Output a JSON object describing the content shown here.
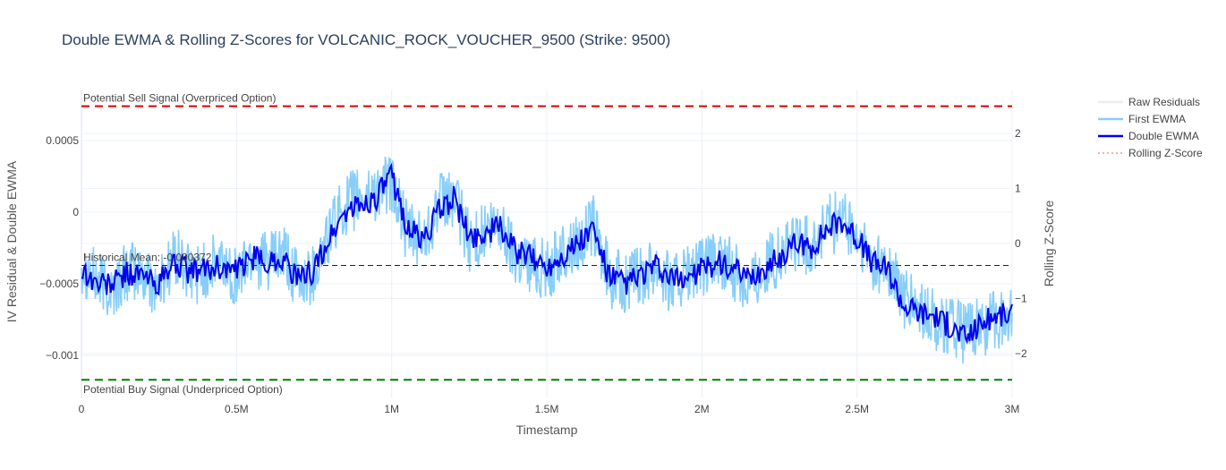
{
  "chart_data": {
    "type": "line",
    "title": "Double EWMA & Rolling Z-Scores for VOLCANIC_ROCK_VOUCHER_9500 (Strike: 9500)",
    "xlabel": "Timestamp",
    "ylabel": "IV Residual & Double EWMA",
    "y2label": "Rolling Z-Score",
    "xlim": [
      0,
      3000000
    ],
    "ylim": [
      -0.00117,
      0.00075
    ],
    "y2lim": [
      -2.6,
      2.6
    ],
    "x_ticks": [
      {
        "value": 0,
        "label": "0"
      },
      {
        "value": 500000,
        "label": "0.5M"
      },
      {
        "value": 1000000,
        "label": "1M"
      },
      {
        "value": 1500000,
        "label": "1.5M"
      },
      {
        "value": 2000000,
        "label": "2M"
      },
      {
        "value": 2500000,
        "label": "2.5M"
      },
      {
        "value": 3000000,
        "label": "3M"
      }
    ],
    "y_ticks": [
      {
        "value": 0.0005,
        "label": "0.0005"
      },
      {
        "value": 0,
        "label": "0"
      },
      {
        "value": -0.0005,
        "label": "−0.0005"
      },
      {
        "value": -0.001,
        "label": "−0.001"
      }
    ],
    "y2_ticks": [
      {
        "value": 2,
        "label": "2"
      },
      {
        "value": 1,
        "label": "1"
      },
      {
        "value": 0,
        "label": "0"
      },
      {
        "value": -1,
        "label": "−1"
      },
      {
        "value": -2,
        "label": "−2"
      }
    ],
    "grid": true,
    "legend_position": "top-right",
    "series": [
      {
        "name": "Raw Residuals",
        "color": "#e0e4ea",
        "dash": "solid",
        "hidden": true,
        "values": []
      },
      {
        "name": "First EWMA",
        "color": "#87cefa",
        "dash": "solid",
        "x": [
          0,
          50000,
          100000,
          150000,
          200000,
          250000,
          300000,
          350000,
          400000,
          450000,
          500000,
          550000,
          600000,
          650000,
          700000,
          750000,
          800000,
          850000,
          900000,
          950000,
          1000000,
          1050000,
          1100000,
          1150000,
          1200000,
          1250000,
          1300000,
          1350000,
          1400000,
          1450000,
          1500000,
          1550000,
          1600000,
          1650000,
          1700000,
          1750000,
          1800000,
          1850000,
          1900000,
          1950000,
          2000000,
          2050000,
          2100000,
          2150000,
          2200000,
          2250000,
          2300000,
          2350000,
          2400000,
          2450000,
          2500000,
          2550000,
          2600000,
          2650000,
          2700000,
          2750000,
          2800000,
          2850000,
          2900000,
          2950000,
          3000000
        ],
        "values": [
          -0.00035,
          -0.00048,
          -0.00055,
          -0.0004,
          -0.00045,
          -0.00052,
          -0.0003,
          -0.00045,
          -0.0004,
          -0.00035,
          -0.00045,
          -0.0003,
          -0.00035,
          -0.0003,
          -0.0005,
          -0.00042,
          -0.00015,
          5e-05,
          0.0001,
          0.00015,
          0.0002,
          -0.00015,
          -0.0002,
          5e-05,
          0.0001,
          -0.0002,
          -0.00015,
          -0.0001,
          -0.0003,
          -0.00035,
          -0.0004,
          -0.0003,
          -0.0002,
          -0.0001,
          -0.00045,
          -0.0005,
          -0.00045,
          -0.00035,
          -0.0005,
          -0.00045,
          -0.0004,
          -0.00035,
          -0.0004,
          -0.0005,
          -0.0004,
          -0.0003,
          -0.0002,
          -0.00025,
          -0.0001,
          -5e-05,
          -0.0002,
          -0.00035,
          -0.0004,
          -0.0006,
          -0.0007,
          -0.00075,
          -0.0008,
          -0.00085,
          -0.0008,
          -0.00075,
          -0.0007
        ]
      },
      {
        "name": "Double EWMA",
        "color": "#0000ee",
        "dash": "solid",
        "x": [
          0,
          50000,
          100000,
          150000,
          200000,
          250000,
          300000,
          350000,
          400000,
          450000,
          500000,
          550000,
          600000,
          650000,
          700000,
          750000,
          800000,
          850000,
          900000,
          950000,
          1000000,
          1050000,
          1100000,
          1150000,
          1200000,
          1250000,
          1300000,
          1350000,
          1400000,
          1450000,
          1500000,
          1550000,
          1600000,
          1650000,
          1700000,
          1750000,
          1800000,
          1850000,
          1900000,
          1950000,
          2000000,
          2050000,
          2100000,
          2150000,
          2200000,
          2250000,
          2300000,
          2350000,
          2400000,
          2450000,
          2500000,
          2550000,
          2600000,
          2650000,
          2700000,
          2750000,
          2800000,
          2850000,
          2900000,
          2950000,
          3000000
        ],
        "values": [
          -0.0004,
          -0.0005,
          -0.0005,
          -0.00042,
          -0.00045,
          -0.0005,
          -0.00035,
          -0.00042,
          -0.0004,
          -0.00038,
          -0.00042,
          -0.00032,
          -0.00035,
          -0.00032,
          -0.00048,
          -0.0004,
          -0.00018,
          0.0,
          5e-05,
          0.0001,
          0.00025,
          -0.0001,
          -0.0002,
          0.0,
          0.0001,
          -0.00018,
          -0.00015,
          -0.0001,
          -0.00028,
          -0.00032,
          -0.00038,
          -0.0003,
          -0.00022,
          -0.00012,
          -0.00045,
          -0.0005,
          -0.00045,
          -0.00038,
          -0.00048,
          -0.00045,
          -0.0004,
          -0.00035,
          -0.0004,
          -0.00048,
          -0.0004,
          -0.00032,
          -0.00022,
          -0.00025,
          -0.00012,
          -5e-05,
          -0.00018,
          -0.00035,
          -0.0004,
          -0.00065,
          -0.0007,
          -0.00072,
          -0.0008,
          -0.00088,
          -0.00078,
          -0.00072,
          -0.00072
        ]
      },
      {
        "name": "Rolling Z-Score",
        "color": "#f08080",
        "dash": "dot",
        "hidden": true,
        "values": []
      }
    ],
    "reference_lines": [
      {
        "name": "sell-threshold",
        "value": 0.00074,
        "color": "#dd0000",
        "dash": "dash",
        "label": "Potential Sell Signal (Overpriced Option)"
      },
      {
        "name": "historical-mean",
        "value": -0.000372,
        "color": "#222222",
        "dash": "dash",
        "label": "Historical Mean: -0.000372"
      },
      {
        "name": "buy-threshold",
        "value": -0.00117,
        "color": "#008000",
        "dash": "dash",
        "label": "Potential Buy Signal (Underpriced Option)"
      }
    ]
  }
}
